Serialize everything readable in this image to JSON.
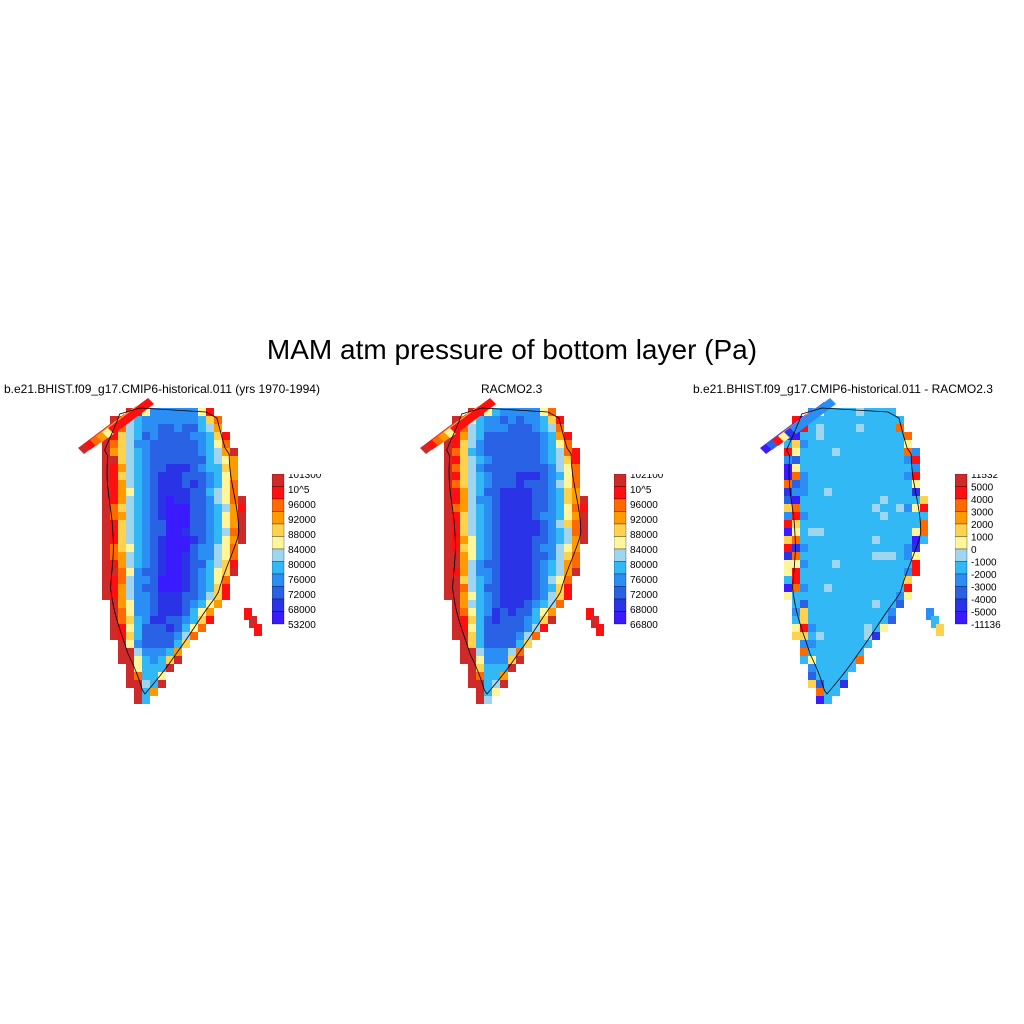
{
  "figure": {
    "title": "MAM atm pressure of bottom layer (Pa)"
  },
  "palette": [
    "#3a1bff",
    "#2a33e6",
    "#2a62e6",
    "#2a8ef5",
    "#31b8f5",
    "#9fd5ef",
    "#fff59a",
    "#ffd24d",
    "#ff9a00",
    "#ff6a00",
    "#ff1010",
    "#cf2a2a"
  ],
  "panels": [
    {
      "title": "b.e21.BHIST.f09_g17.CMIP6-historical.011 (yrs 1970-1994)",
      "colorbar_labels": [
        "101300",
        "10^5",
        "96000",
        "92000",
        "88000",
        "84000",
        "80000",
        "76000",
        "72000",
        "68000",
        "53200"
      ]
    },
    {
      "title": "RACMO2.3",
      "colorbar_labels": [
        "102100",
        "10^5",
        "96000",
        "92000",
        "88000",
        "84000",
        "80000",
        "76000",
        "72000",
        "68000",
        "66800"
      ]
    },
    {
      "title": "b.e21.BHIST.f09_g17.CMIP6-historical.011 - RACMO2.3",
      "colorbar_labels": [
        "11532",
        "5000",
        "4000",
        "3000",
        "2000",
        "1000",
        "0",
        "-1000",
        "-2000",
        "-3000",
        "-4000",
        "-5000",
        "-11136"
      ]
    }
  ]
}
